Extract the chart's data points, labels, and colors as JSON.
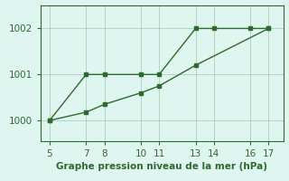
{
  "line1_x": [
    5,
    7,
    8,
    10,
    11,
    13,
    14,
    16,
    17
  ],
  "line1_y": [
    1000,
    1001,
    1001,
    1001,
    1001,
    1002,
    1002,
    1002,
    1002
  ],
  "line2_x": [
    5,
    7,
    8,
    10,
    11,
    13,
    17
  ],
  "line2_y": [
    1000,
    1000.18,
    1000.35,
    1000.6,
    1000.75,
    1001.2,
    1002
  ],
  "color": "#2d6a2d",
  "background_color": "#dff5f0",
  "xlabel": "Graphe pression niveau de la mer (hPa)",
  "xlim": [
    4.5,
    17.8
  ],
  "ylim": [
    999.55,
    1002.5
  ],
  "yticks": [
    1000,
    1001,
    1002
  ],
  "xticks": [
    5,
    7,
    8,
    10,
    11,
    13,
    14,
    16,
    17
  ],
  "marker": "s",
  "markersize": 2.5,
  "linewidth": 1.0,
  "tick_labelsize": 7.5,
  "xlabel_fontsize": 7.5
}
